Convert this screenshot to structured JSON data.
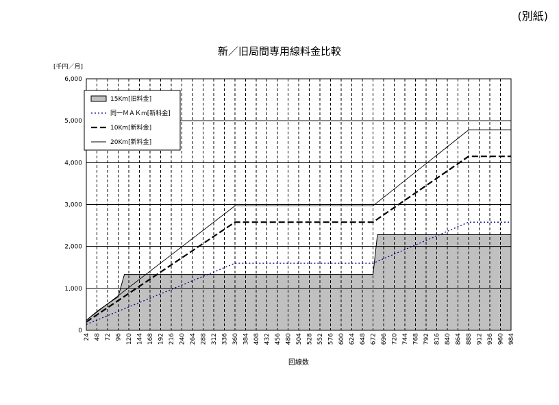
{
  "corner_note": "(別紙)",
  "chart_data": {
    "type": "area",
    "title": "新／旧局間専用線料金比較",
    "unit_label": "[千円／月]",
    "xlabel": "回線数",
    "ylabel": "",
    "ylim": [
      0,
      6000
    ],
    "yticks": [
      "0",
      "1,000",
      "2,000",
      "3,000",
      "4,000",
      "5,000",
      "6,000"
    ],
    "categories": [
      "24",
      "48",
      "72",
      "96",
      "120",
      "144",
      "168",
      "192",
      "216",
      "240",
      "264",
      "288",
      "312",
      "336",
      "360",
      "384",
      "408",
      "432",
      "456",
      "480",
      "504",
      "528",
      "552",
      "576",
      "600",
      "624",
      "648",
      "672",
      "696",
      "720",
      "744",
      "768",
      "792",
      "816",
      "840",
      "864",
      "888",
      "912",
      "936",
      "960",
      "984"
    ],
    "grid": true,
    "legend_position": "top-left",
    "series": [
      {
        "name": "15Km[旧料金]",
        "style": "area",
        "color": "#c0c0c0",
        "points": [
          [
            24,
            240
          ],
          [
            48,
            450
          ],
          [
            72,
            630
          ],
          [
            96,
            800
          ],
          [
            110,
            1330
          ],
          [
            672,
            1330
          ],
          [
            682,
            2280
          ],
          [
            984,
            2280
          ]
        ]
      },
      {
        "name": "同一ＭＡＫm[新料金]",
        "style": "dotted",
        "color": "#00008b",
        "points": [
          [
            24,
            140
          ],
          [
            360,
            1600
          ],
          [
            672,
            1600
          ],
          [
            888,
            2580
          ],
          [
            984,
            2580
          ]
        ]
      },
      {
        "name": "10Km[新料金]",
        "style": "dashed",
        "color": "#000000",
        "points": [
          [
            24,
            200
          ],
          [
            360,
            2580
          ],
          [
            672,
            2580
          ],
          [
            888,
            4150
          ],
          [
            984,
            4150
          ]
        ]
      },
      {
        "name": "20Km[新料金]",
        "style": "solid",
        "color": "#000000",
        "points": [
          [
            24,
            240
          ],
          [
            360,
            2970
          ],
          [
            672,
            2970
          ],
          [
            888,
            4780
          ],
          [
            984,
            4780
          ]
        ]
      }
    ]
  }
}
